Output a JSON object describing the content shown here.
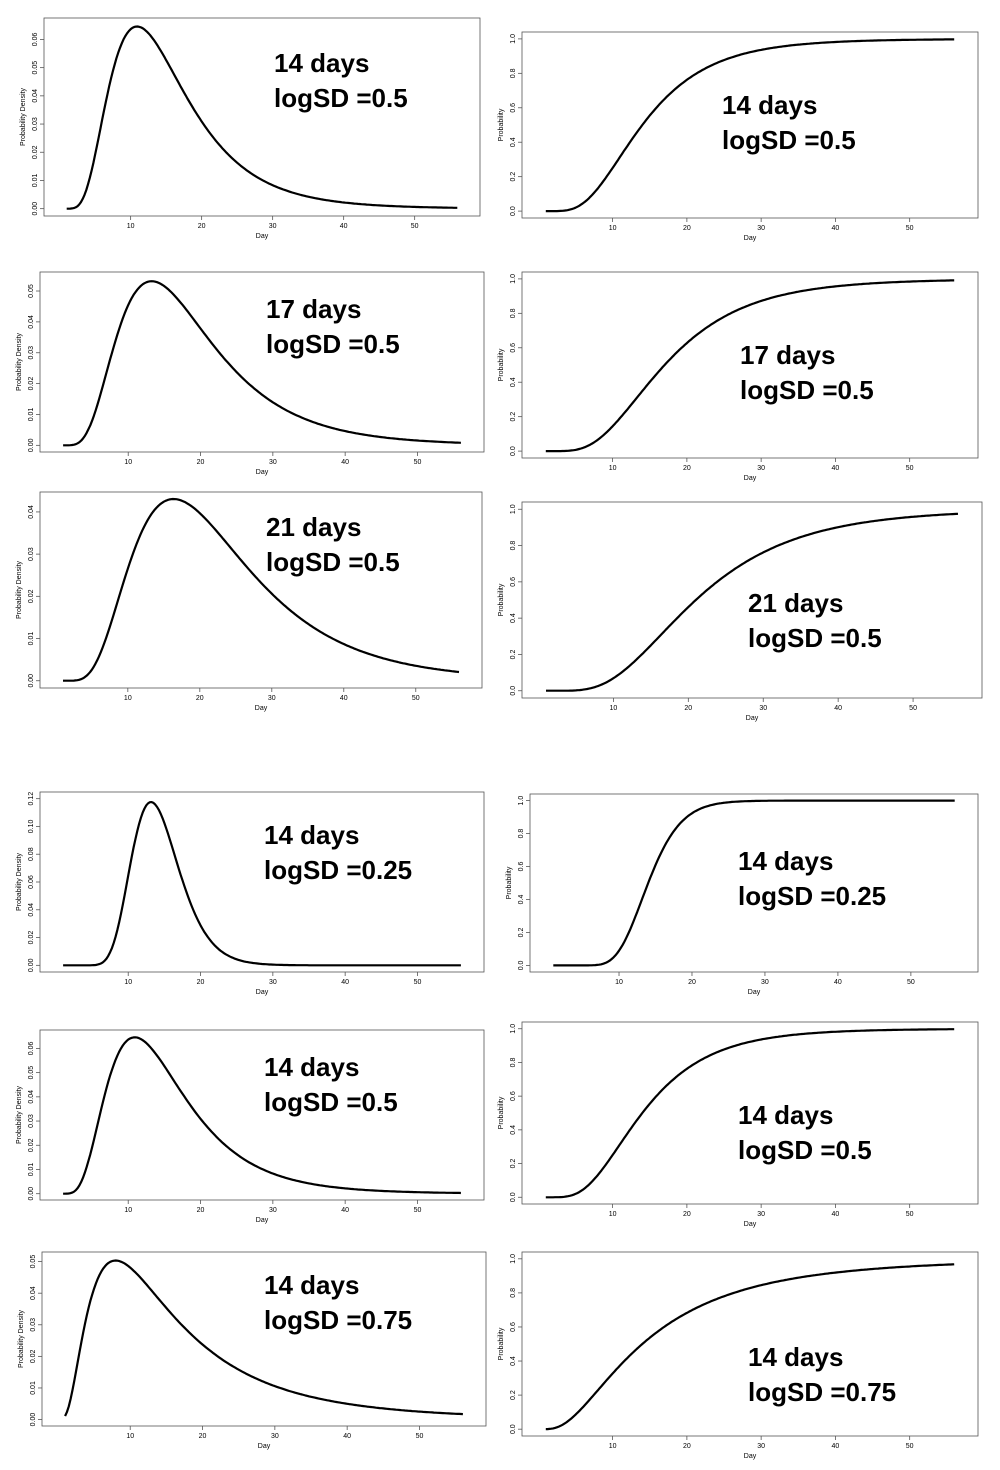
{
  "chart_data": [
    {
      "type": "line",
      "panel": "pdf",
      "ylabel": "Probability Density",
      "xlabel": "Day",
      "xlim": [
        1,
        56
      ],
      "ylim": [
        0,
        0.065
      ],
      "x_ticks": [
        10,
        20,
        30,
        40,
        50
      ],
      "y_ticks": [
        0,
        0.01,
        0.02,
        0.03,
        0.04,
        0.05,
        0.06
      ],
      "y_tick_labels": [
        "0.00",
        "0.01",
        "0.02",
        "0.03",
        "0.04",
        "0.05",
        "0.06"
      ],
      "median": 14,
      "logsd": 0.5,
      "annotation": [
        "14 days",
        "logSD =0.5"
      ]
    },
    {
      "type": "line",
      "panel": "cdf",
      "ylabel": "Probability",
      "xlabel": "Day",
      "xlim": [
        1,
        56
      ],
      "ylim": [
        0,
        1
      ],
      "x_ticks": [
        10,
        20,
        30,
        40,
        50
      ],
      "y_ticks": [
        0,
        0.2,
        0.4,
        0.6,
        0.8,
        1.0
      ],
      "y_tick_labels": [
        "0.0",
        "0.2",
        "0.4",
        "0.6",
        "0.8",
        "1.0"
      ],
      "median": 14,
      "logsd": 0.5,
      "annotation": [
        "14 days",
        "logSD =0.5"
      ]
    },
    {
      "type": "line",
      "panel": "pdf",
      "ylabel": "Probability Density",
      "xlabel": "Day",
      "xlim": [
        1,
        56
      ],
      "ylim": [
        0,
        0.054
      ],
      "x_ticks": [
        10,
        20,
        30,
        40,
        50
      ],
      "y_ticks": [
        0,
        0.01,
        0.02,
        0.03,
        0.04,
        0.05
      ],
      "y_tick_labels": [
        "0.00",
        "0.01",
        "0.02",
        "0.03",
        "0.04",
        "0.05"
      ],
      "median": 17,
      "logsd": 0.5,
      "annotation": [
        "17 days",
        "logSD =0.5"
      ]
    },
    {
      "type": "line",
      "panel": "cdf",
      "ylabel": "Probability",
      "xlabel": "Day",
      "xlim": [
        1,
        56
      ],
      "ylim": [
        0,
        1
      ],
      "x_ticks": [
        10,
        20,
        30,
        40,
        50
      ],
      "y_ticks": [
        0,
        0.2,
        0.4,
        0.6,
        0.8,
        1.0
      ],
      "y_tick_labels": [
        "0.0",
        "0.2",
        "0.4",
        "0.6",
        "0.8",
        "1.0"
      ],
      "median": 17,
      "logsd": 0.5,
      "annotation": [
        "17 days",
        "logSD =0.5"
      ]
    },
    {
      "type": "line",
      "panel": "pdf",
      "ylabel": "Probability Density",
      "xlabel": "Day",
      "xlim": [
        1,
        56
      ],
      "ylim": [
        0,
        0.043
      ],
      "x_ticks": [
        10,
        20,
        30,
        40,
        50
      ],
      "y_ticks": [
        0,
        0.01,
        0.02,
        0.03,
        0.04
      ],
      "y_tick_labels": [
        "0.00",
        "0.01",
        "0.02",
        "0.03",
        "0.04"
      ],
      "median": 21,
      "logsd": 0.5,
      "annotation": [
        "21 days",
        "logSD =0.5"
      ]
    },
    {
      "type": "line",
      "panel": "cdf",
      "ylabel": "Probability",
      "xlabel": "Day",
      "xlim": [
        1,
        56
      ],
      "ylim": [
        0,
        1
      ],
      "x_ticks": [
        10,
        20,
        30,
        40,
        50
      ],
      "y_ticks": [
        0,
        0.2,
        0.4,
        0.6,
        0.8,
        1.0
      ],
      "y_tick_labels": [
        "0.0",
        "0.2",
        "0.4",
        "0.6",
        "0.8",
        "1.0"
      ],
      "median": 21,
      "logsd": 0.5,
      "annotation": [
        "21 days",
        "logSD =0.5"
      ]
    },
    {
      "type": "line",
      "panel": "pdf",
      "ylabel": "Probability Density",
      "xlabel": "Day",
      "xlim": [
        1,
        56
      ],
      "ylim": [
        0,
        0.12
      ],
      "x_ticks": [
        10,
        20,
        30,
        40,
        50
      ],
      "y_ticks": [
        0,
        0.02,
        0.04,
        0.06,
        0.08,
        0.1,
        0.12
      ],
      "y_tick_labels": [
        "0.00",
        "0.02",
        "0.04",
        "0.06",
        "0.08",
        "0.10",
        "0.12"
      ],
      "median": 14,
      "logsd": 0.25,
      "annotation": [
        "14 days",
        "logSD =0.25"
      ]
    },
    {
      "type": "line",
      "panel": "cdf",
      "ylabel": "Probability",
      "xlabel": "Day",
      "xlim": [
        1,
        56
      ],
      "ylim": [
        0,
        1
      ],
      "x_ticks": [
        10,
        20,
        30,
        40,
        50
      ],
      "y_ticks": [
        0,
        0.2,
        0.4,
        0.6,
        0.8,
        1.0
      ],
      "y_tick_labels": [
        "0.0",
        "0.2",
        "0.4",
        "0.6",
        "0.8",
        "1.0"
      ],
      "median": 14,
      "logsd": 0.25,
      "annotation": [
        "14 days",
        "logSD =0.25"
      ]
    },
    {
      "type": "line",
      "panel": "pdf",
      "ylabel": "Probability Density",
      "xlabel": "Day",
      "xlim": [
        1,
        56
      ],
      "ylim": [
        0,
        0.065
      ],
      "x_ticks": [
        10,
        20,
        30,
        40,
        50
      ],
      "y_ticks": [
        0,
        0.01,
        0.02,
        0.03,
        0.04,
        0.05,
        0.06
      ],
      "y_tick_labels": [
        "0.00",
        "0.01",
        "0.02",
        "0.03",
        "0.04",
        "0.05",
        "0.06"
      ],
      "median": 14,
      "logsd": 0.5,
      "annotation": [
        "14 days",
        "logSD =0.5"
      ]
    },
    {
      "type": "line",
      "panel": "cdf",
      "ylabel": "Probability",
      "xlabel": "Day",
      "xlim": [
        1,
        56
      ],
      "ylim": [
        0,
        1
      ],
      "x_ticks": [
        10,
        20,
        30,
        40,
        50
      ],
      "y_ticks": [
        0,
        0.2,
        0.4,
        0.6,
        0.8,
        1.0
      ],
      "y_tick_labels": [
        "0.0",
        "0.2",
        "0.4",
        "0.6",
        "0.8",
        "1.0"
      ],
      "median": 14,
      "logsd": 0.5,
      "annotation": [
        "14 days",
        "logSD =0.5"
      ]
    },
    {
      "type": "line",
      "panel": "pdf",
      "ylabel": "Probability Density",
      "xlabel": "Day",
      "xlim": [
        1,
        56
      ],
      "ylim": [
        0,
        0.051
      ],
      "x_ticks": [
        10,
        20,
        30,
        40,
        50
      ],
      "y_ticks": [
        0,
        0.01,
        0.02,
        0.03,
        0.04,
        0.05
      ],
      "y_tick_labels": [
        "0.00",
        "0.01",
        "0.02",
        "0.03",
        "0.04",
        "0.05"
      ],
      "median": 14,
      "logsd": 0.75,
      "annotation": [
        "14 days",
        "logSD =0.75"
      ]
    },
    {
      "type": "line",
      "panel": "cdf",
      "ylabel": "Probability",
      "xlabel": "Day",
      "xlim": [
        1,
        56
      ],
      "ylim": [
        0,
        1
      ],
      "x_ticks": [
        10,
        20,
        30,
        40,
        50
      ],
      "y_ticks": [
        0,
        0.2,
        0.4,
        0.6,
        0.8,
        1.0
      ],
      "y_tick_labels": [
        "0.0",
        "0.2",
        "0.4",
        "0.6",
        "0.8",
        "1.0"
      ],
      "median": 14,
      "logsd": 0.75,
      "annotation": [
        "14 days",
        "logSD =0.75"
      ]
    }
  ]
}
